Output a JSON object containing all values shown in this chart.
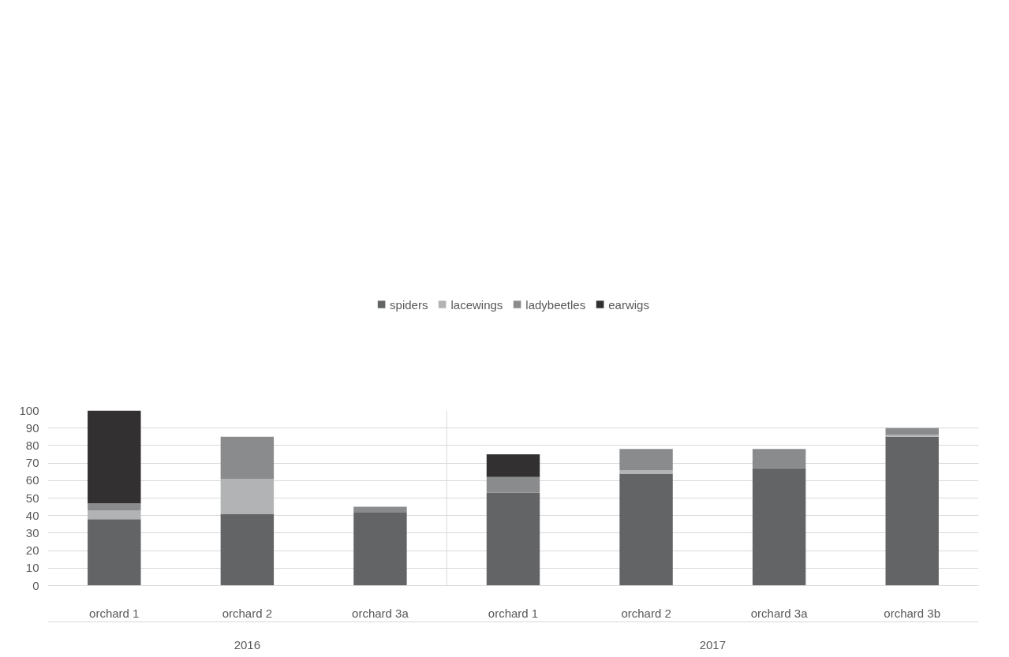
{
  "chart_data": {
    "type": "bar",
    "stacked": true,
    "categories": [
      "orchard 1",
      "orchard 2",
      "orchard 3a",
      "orchard 1",
      "orchard 2",
      "orchard 3a",
      "orchard 3b"
    ],
    "series": [
      {
        "name": "spiders",
        "color": "#636466",
        "values": [
          38,
          41,
          42,
          53,
          64,
          67,
          85
        ]
      },
      {
        "name": "lacewings",
        "color": "#b2b3b5",
        "values": [
          5,
          20,
          0,
          0,
          2,
          0,
          1
        ]
      },
      {
        "name": "ladybeetles",
        "color": "#8a8b8d",
        "values": [
          4,
          24,
          3,
          9,
          12,
          11,
          4
        ]
      },
      {
        "name": "earwigs",
        "color": "#323031",
        "values": [
          53,
          0,
          0,
          13,
          0,
          0,
          0
        ]
      }
    ],
    "annotations": [
      "2016",
      "2017"
    ],
    "ylim": [
      0,
      100
    ],
    "yticks": [
      0,
      10,
      20,
      30,
      40,
      50,
      60,
      70,
      80,
      90,
      100
    ],
    "grid": "y",
    "legend": "top"
  }
}
